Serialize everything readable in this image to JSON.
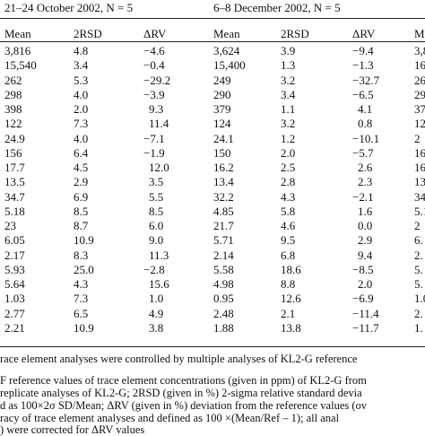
{
  "table": {
    "groups": [
      "21–24 October 2002, N = 5",
      "6–8 December 2002, N = 5"
    ],
    "columns": [
      "Mean",
      "2RSD",
      "ΔRV",
      "Mean",
      "2RSD",
      "ΔRV",
      "M"
    ],
    "rows": [
      [
        "3,816",
        "4.8",
        "−4.6",
        "3,624",
        "3.9",
        "−9.4",
        "3,8"
      ],
      [
        "15,540",
        "3.4",
        "−0.4",
        "15,400",
        "1.3",
        "−1.3",
        "16,"
      ],
      [
        "262",
        "5.3",
        "−29.2",
        "249",
        "3.2",
        "−32.7",
        "26"
      ],
      [
        "298",
        "4.0",
        "−3.9",
        "290",
        "3.4",
        "−6.5",
        "29"
      ],
      [
        "398",
        "2.0",
        "9.3",
        "379",
        "1.1",
        "4.1",
        "37"
      ],
      [
        "122",
        "7.3",
        "11.4",
        "124",
        "3.2",
        "0.8",
        "12"
      ],
      [
        "24.9",
        "4.0",
        "−7.1",
        "24.1",
        "1.2",
        "−10.1",
        "2"
      ],
      [
        "156",
        "6.4",
        "−1.9",
        "150",
        "2.0",
        "−5.7",
        "16"
      ],
      [
        "17.7",
        "4.5",
        "12.0",
        "16.2",
        "2.5",
        "2.6",
        "16"
      ],
      [
        "13.5",
        "2.9",
        "3.5",
        "13.4",
        "2.8",
        "2.3",
        "13"
      ],
      [
        "34.7",
        "6.9",
        "5.5",
        "32.2",
        "4.3",
        "−2.1",
        "34"
      ],
      [
        "5.18",
        "8.5",
        "8.5",
        "4.85",
        "5.8",
        "1.6",
        "5.1"
      ],
      [
        "23",
        "8.7",
        "6.0",
        "21.7",
        "4.6",
        "0.0",
        "2"
      ],
      [
        "6.05",
        "10.9",
        "9.0",
        "5.71",
        "9.5",
        "2.9",
        "6."
      ],
      [
        "2.17",
        "8.3",
        "11.3",
        "2.14",
        "6.8",
        "9.4",
        "2."
      ],
      [
        "5.93",
        "25.0",
        "−2.8",
        "5.58",
        "18.6",
        "−8.5",
        "5."
      ],
      [
        "5.64",
        "4.3",
        "15.6",
        "4.98",
        "8.8",
        "2.0",
        "5."
      ],
      [
        "1.03",
        "7.3",
        "1.0",
        "0.95",
        "12.6",
        "−6.9",
        "1.0"
      ],
      [
        "2.77",
        "6.5",
        "4.9",
        "2.48",
        "2.1",
        "−11.4",
        "2."
      ],
      [
        "2.21",
        "10.9",
        "3.8",
        "1.88",
        "13.8",
        "−11.7",
        "1."
      ]
    ]
  },
  "footnotes": [
    "race element analyses were controlled by multiple analyses of KL2-G reference",
    "F reference values of trace element concentrations (given in ppm) of KL2-G from",
    "replicate analyses of KL2-G; 2RSD (given in %) 2-sigma relative standard devia",
    "d as 100×2σ SD/Mean; ΔRV (given in %) deviation from the reference values (ov",
    "racy of trace element analyses and defined as 100 ×(Mean/Ref – 1); all anal",
    ") were corrected for ΔRV values"
  ]
}
